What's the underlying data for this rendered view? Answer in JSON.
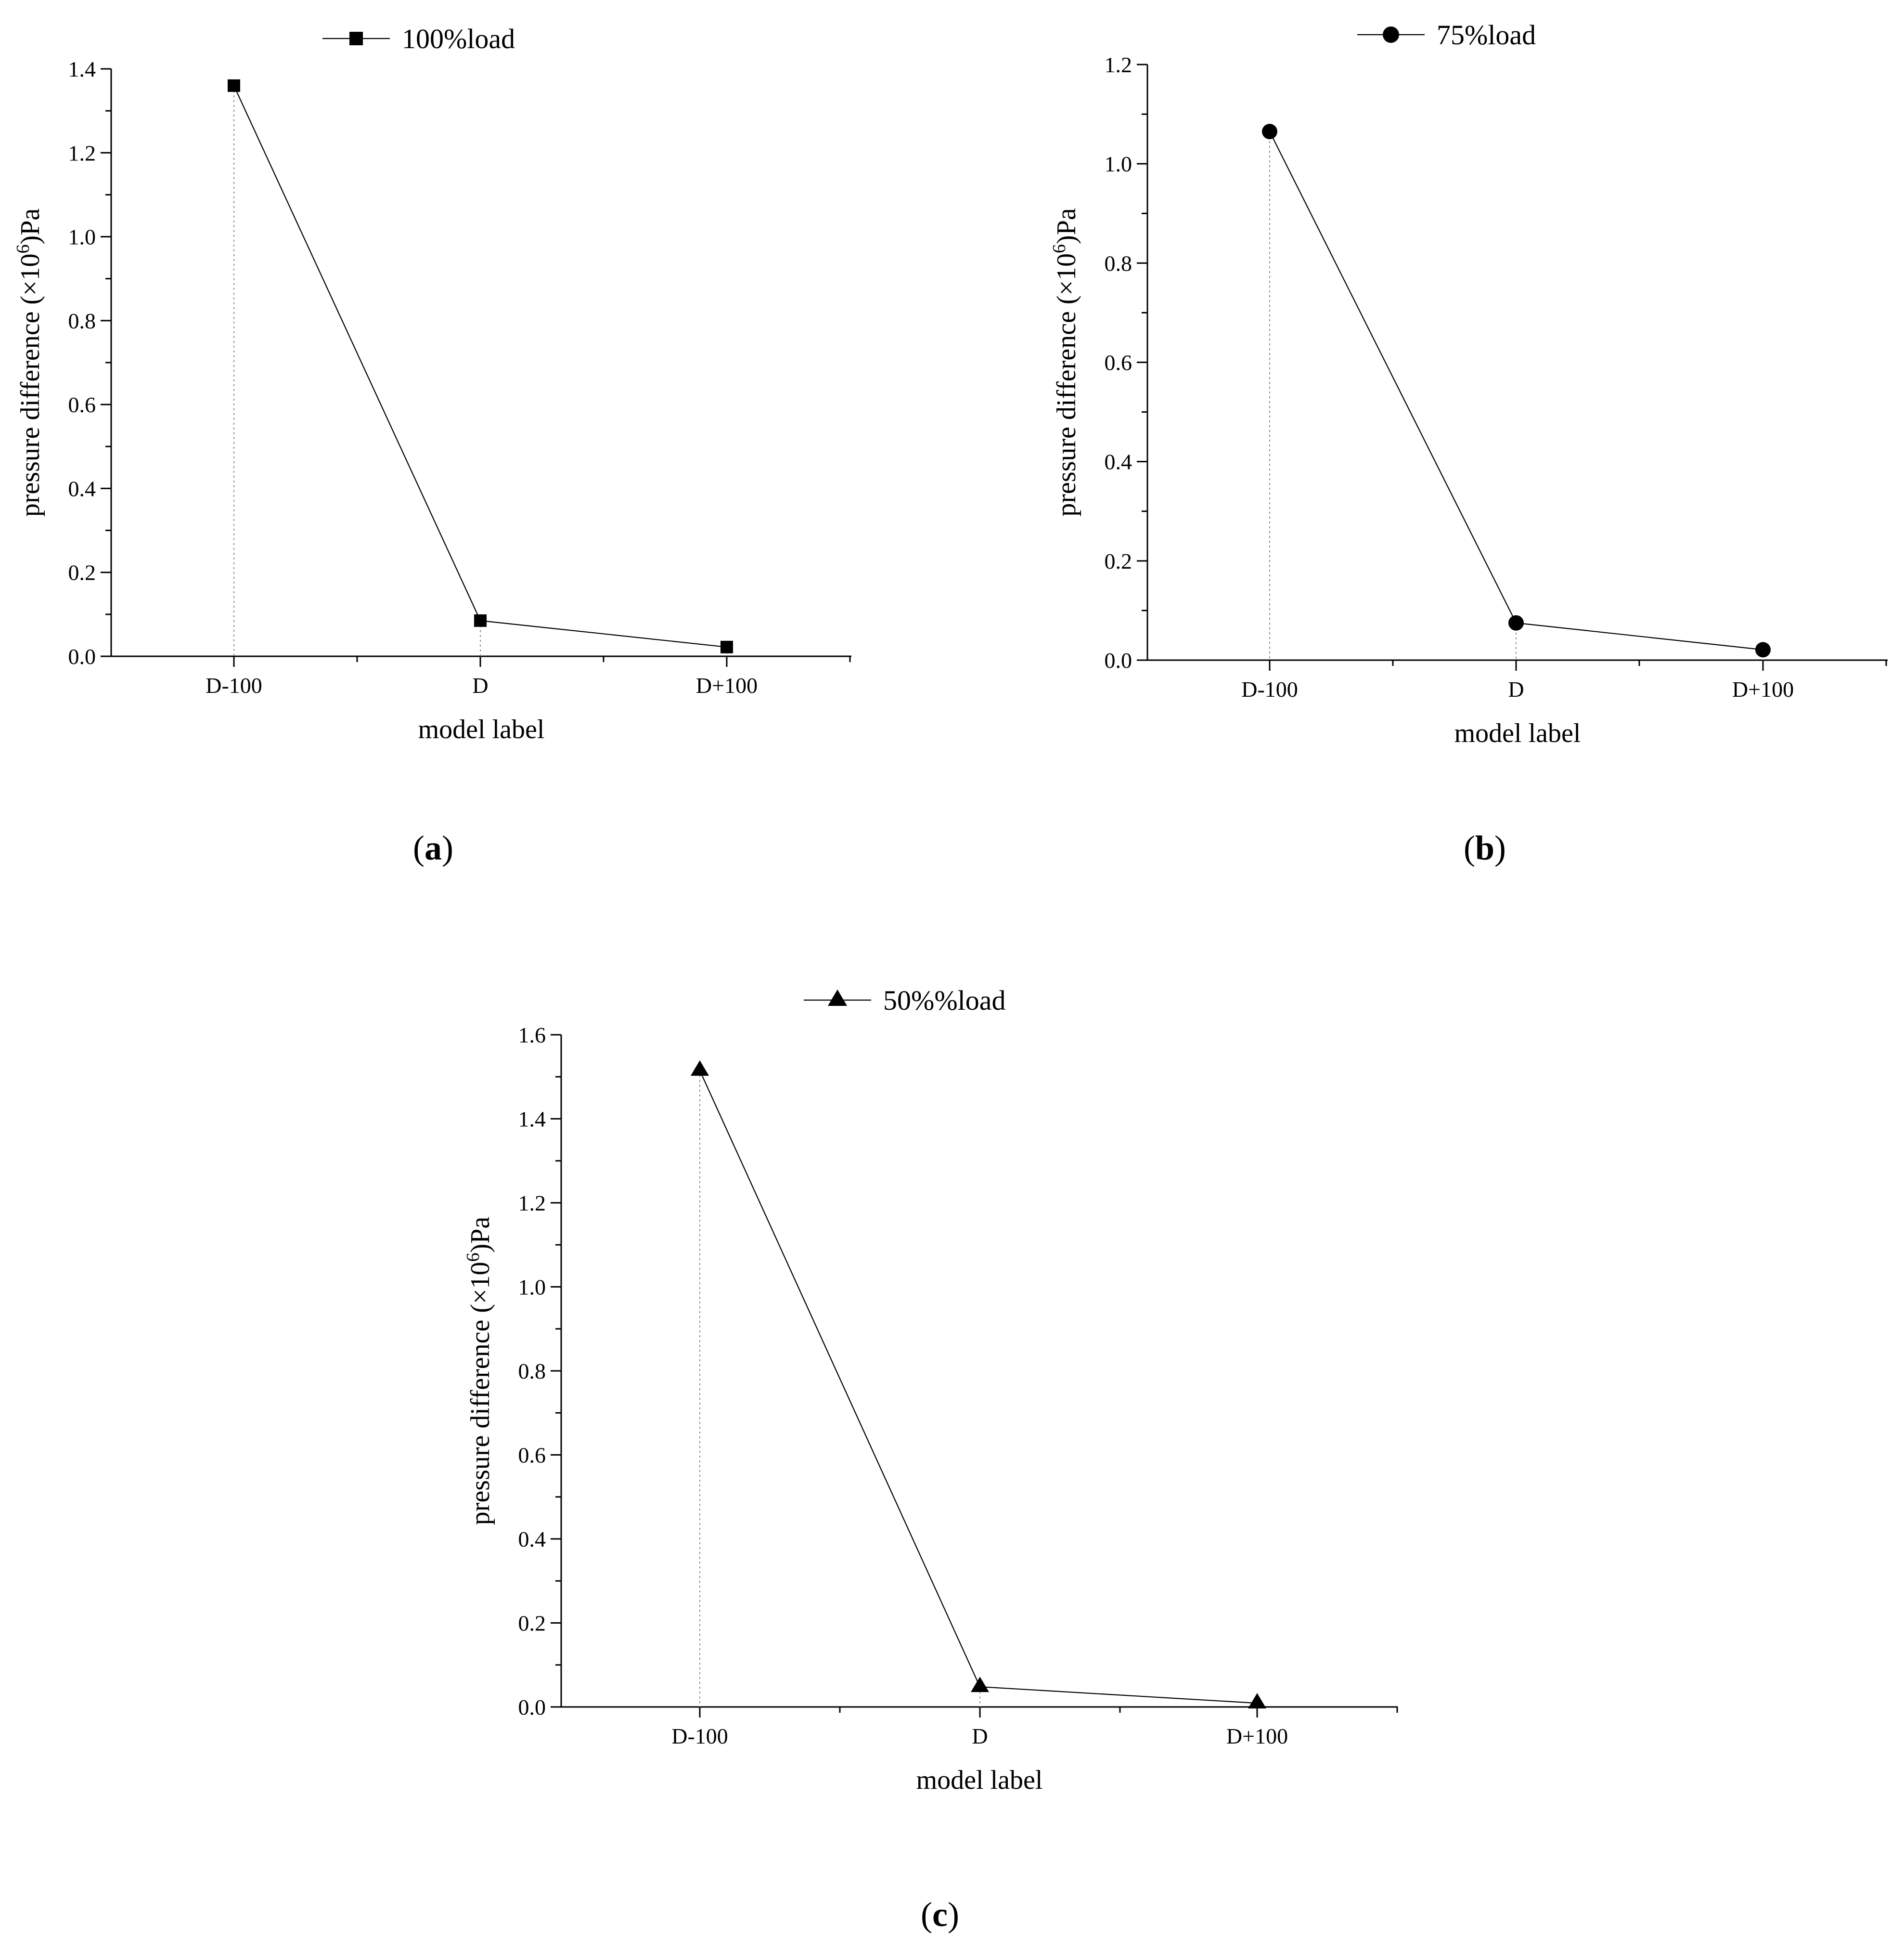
{
  "figure": {
    "panels": [
      "a",
      "b",
      "c"
    ]
  },
  "chart_data": [
    {
      "id": "a",
      "type": "line",
      "panel_label": "a",
      "categories": [
        "D-100",
        "D",
        "D+100"
      ],
      "series": [
        {
          "name": "100%load",
          "marker": "square",
          "values": [
            1.36,
            0.085,
            0.022
          ]
        }
      ],
      "xlabel": "model label",
      "ylabel_prefix": "pressure difference (×10",
      "ylabel_exp": "6",
      "ylabel_suffix": ")Pa",
      "ylim": [
        0,
        1.4
      ],
      "yticks": [
        "0.0",
        "0.2",
        "0.4",
        "0.6",
        "0.8",
        "1.0",
        "1.2",
        "1.4"
      ],
      "legend": "top"
    },
    {
      "id": "b",
      "type": "line",
      "panel_label": "b",
      "categories": [
        "D-100",
        "D",
        "D+100"
      ],
      "series": [
        {
          "name": "75%load",
          "marker": "circle",
          "values": [
            1.065,
            0.075,
            0.021
          ]
        }
      ],
      "xlabel": "model label",
      "ylabel_prefix": "pressure difference (×10",
      "ylabel_exp": "6",
      "ylabel_suffix": ")Pa",
      "ylim": [
        0,
        1.2
      ],
      "yticks": [
        "0.0",
        "0.2",
        "0.4",
        "0.6",
        "0.8",
        "1.0",
        "1.2"
      ],
      "legend": "top"
    },
    {
      "id": "c",
      "type": "line",
      "panel_label": "c",
      "categories": [
        "D-100",
        "D",
        "D+100"
      ],
      "series": [
        {
          "name": "50%%load",
          "marker": "triangle",
          "values": [
            1.515,
            0.048,
            0.009
          ]
        }
      ],
      "xlabel": "model label",
      "ylabel_prefix": "pressure difference (×10",
      "ylabel_exp": "6",
      "ylabel_suffix": ")Pa",
      "ylim": [
        0,
        1.6
      ],
      "yticks": [
        "0.0",
        "0.2",
        "0.4",
        "0.6",
        "0.8",
        "1.0",
        "1.2",
        "1.4",
        "1.6"
      ],
      "legend": "top"
    }
  ]
}
